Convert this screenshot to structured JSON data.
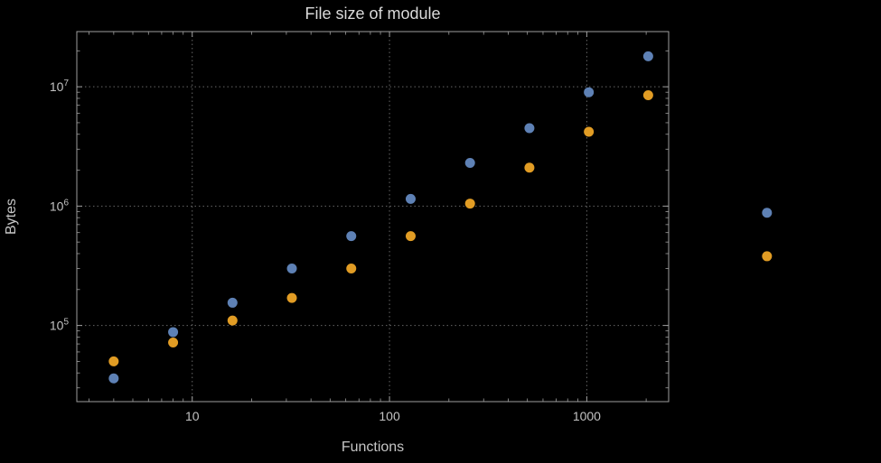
{
  "chart_data": {
    "type": "scatter",
    "title": "File size of module",
    "xlabel": "Functions",
    "ylabel": "Bytes",
    "x_scale": "log",
    "y_scale": "log",
    "grid": "dotted",
    "legend": "none",
    "x_ticks": [
      10,
      100,
      1000
    ],
    "y_tick_exponents": [
      5,
      6,
      7
    ],
    "x_range": [
      2.6,
      2600
    ],
    "y_range": [
      23000,
      29000000
    ],
    "x": [
      4,
      8,
      16,
      32,
      64,
      128,
      256,
      512,
      1024,
      2048,
      8192
    ],
    "series": [
      {
        "name": "blue",
        "color": "#5E81B5",
        "values": [
          36000,
          88000,
          155000,
          300000,
          560000,
          1150000,
          2300000,
          4500000,
          9000000,
          18000000,
          880000
        ]
      },
      {
        "name": "orange",
        "color": "#E19C24",
        "values": [
          50000,
          72000,
          110000,
          170000,
          300000,
          560000,
          1050000,
          2100000,
          4200000,
          8500000,
          380000
        ]
      }
    ]
  },
  "style": {
    "background": "#000000",
    "frame_color": "#9e9e9e",
    "grid_color": "#666666",
    "tick_label_color": "#c2c2c2",
    "axis_label_color": "#c6c6c6",
    "title_color": "#d9d9d9"
  }
}
